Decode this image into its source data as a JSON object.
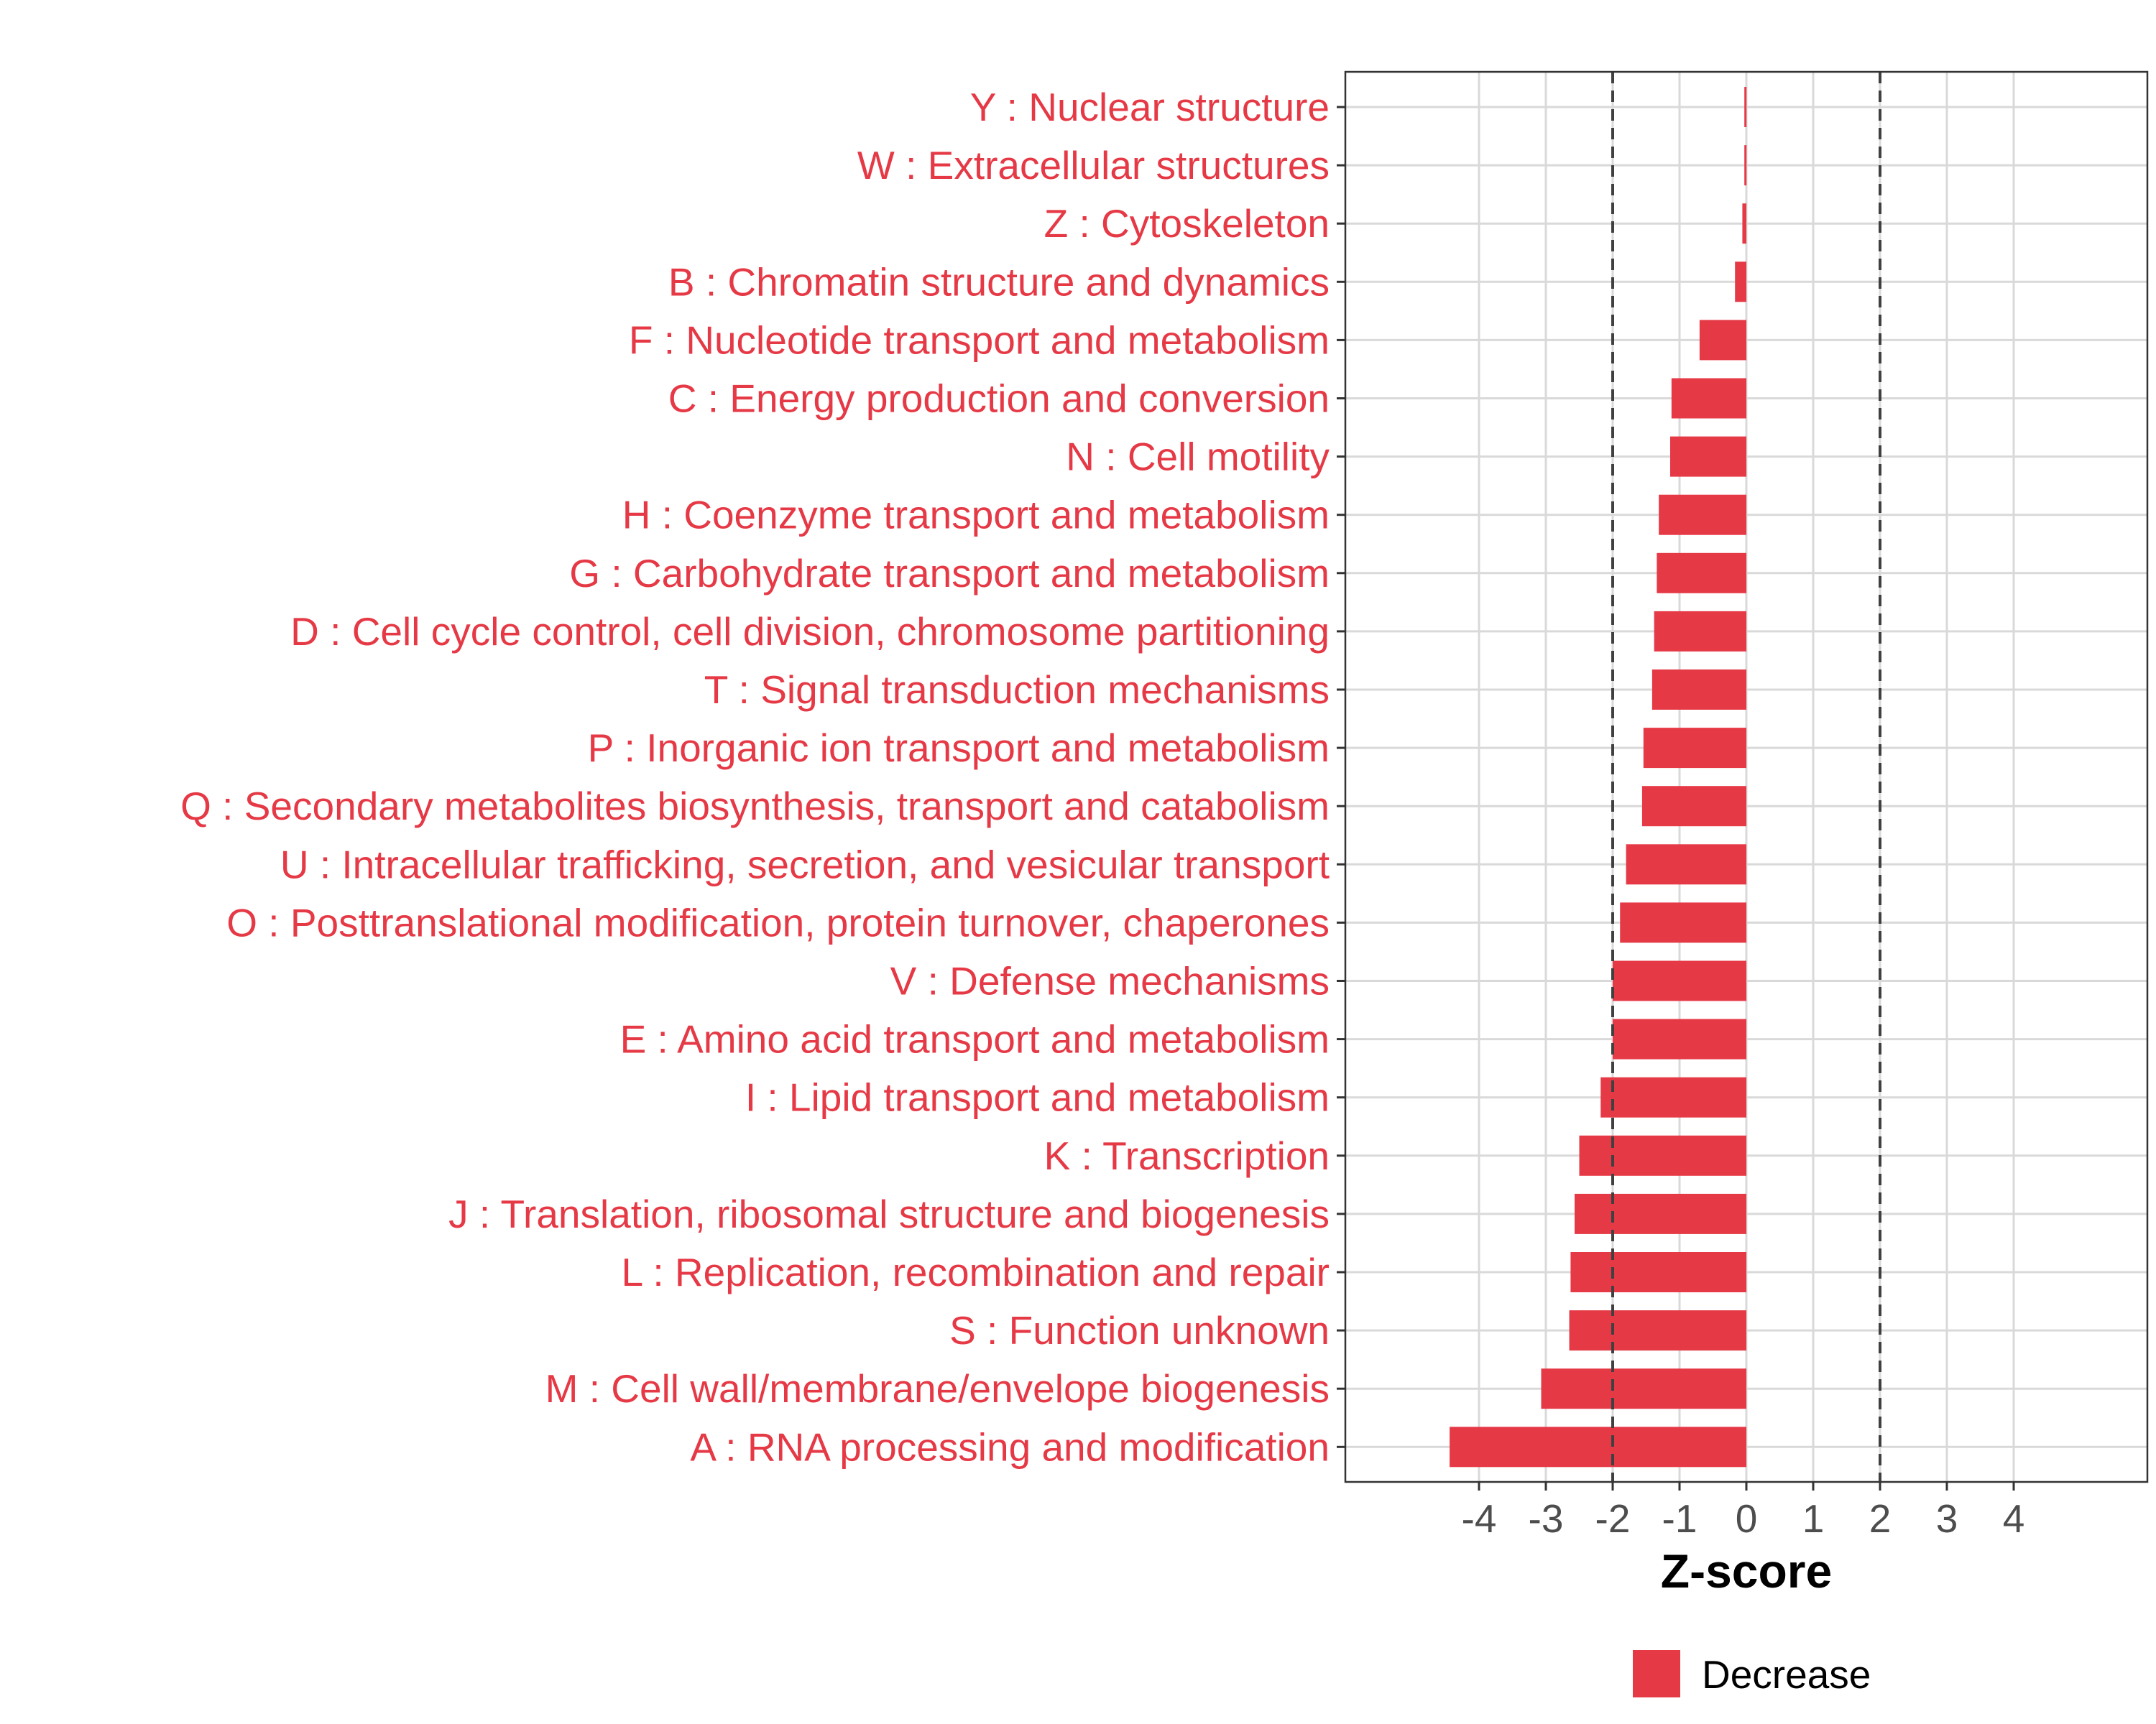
{
  "chart_data": {
    "type": "bar",
    "orientation": "horizontal",
    "categories": [
      "Y : Nuclear structure",
      "W : Extracellular structures",
      "Z : Cytoskeleton",
      "B : Chromatin structure and dynamics",
      "F : Nucleotide transport and metabolism",
      "C : Energy production and conversion",
      "N : Cell motility",
      "H : Coenzyme transport and metabolism",
      "G : Carbohydrate transport and metabolism",
      "D : Cell cycle control, cell division, chromosome partitioning",
      "T : Signal transduction mechanisms",
      "P : Inorganic ion transport and metabolism",
      "Q : Secondary metabolites biosynthesis, transport and catabolism",
      "U : Intracellular trafficking, secretion, and vesicular transport",
      "O : Posttranslational modification, protein turnover, chaperones",
      "V : Defense mechanisms",
      "E : Amino acid transport and metabolism",
      "I : Lipid transport and metabolism",
      "K : Transcription",
      "J : Translation, ribosomal structure and biogenesis",
      "L : Replication, recombination and repair",
      "S : Function unknown",
      "M : Cell wall/membrane/envelope biogenesis",
      "A : RNA processing and modification"
    ],
    "series": [
      {
        "name": "Decrease",
        "color": "#e63946",
        "values": [
          -0.03,
          -0.03,
          -0.06,
          -0.17,
          -0.7,
          -1.12,
          -1.14,
          -1.31,
          -1.34,
          -1.38,
          -1.41,
          -1.54,
          -1.56,
          -1.8,
          -1.89,
          -2.0,
          -2.0,
          -2.18,
          -2.5,
          -2.57,
          -2.63,
          -2.65,
          -3.07,
          -4.44
        ]
      }
    ],
    "xlabel": "Z-score",
    "ylabel": "",
    "xlim": [
      -6,
      6
    ],
    "xticks": [
      -4,
      -3,
      -2,
      -1,
      0,
      1,
      2,
      3,
      4
    ],
    "threshold_lines": [
      -2,
      2
    ],
    "grid": true,
    "legend": {
      "position": "bottom",
      "entries": [
        "Decrease"
      ]
    },
    "label_color": "#e63946"
  }
}
